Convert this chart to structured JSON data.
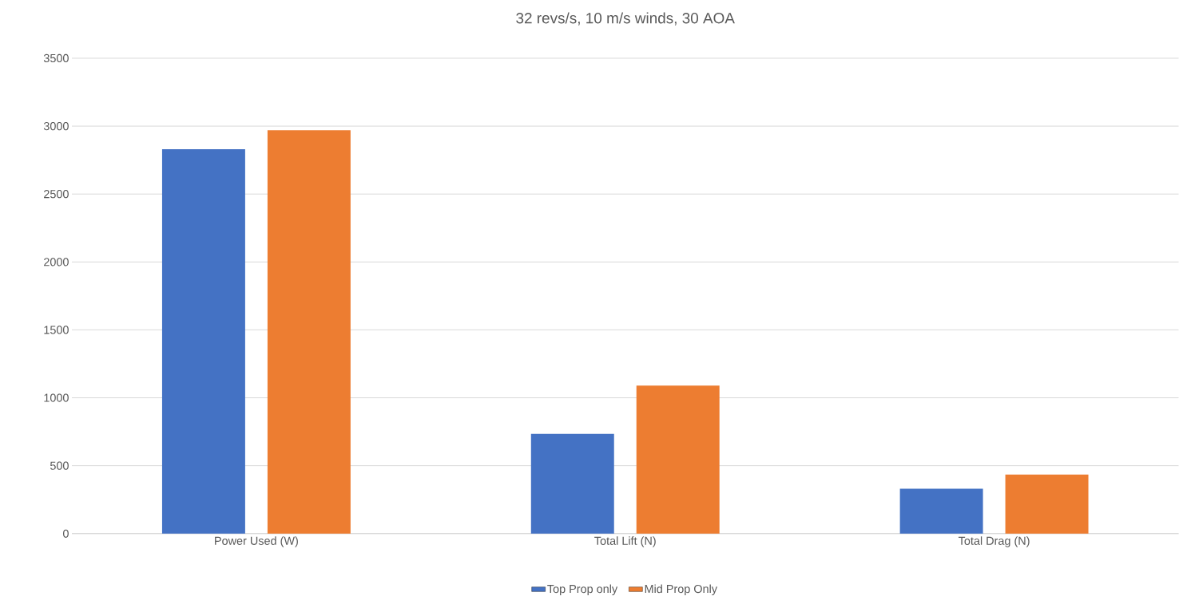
{
  "chart_data": {
    "type": "bar",
    "title": "32 revs/s, 10 m/s winds, 30 AOA",
    "categories": [
      "Power Used (W)",
      "Total Lift (N)",
      "Total Drag (N)"
    ],
    "series": [
      {
        "name": "Top Prop only",
        "color": "#4472c4",
        "values": [
          2830,
          735,
          330
        ]
      },
      {
        "name": "Mid Prop Only",
        "color": "#ed7d31",
        "values": [
          2970,
          1090,
          435
        ]
      }
    ],
    "ylim": [
      0,
      3500
    ],
    "yticks": [
      0,
      500,
      1000,
      1500,
      2000,
      2500,
      3000,
      3500
    ],
    "grid": "y",
    "legend": "bottom"
  }
}
